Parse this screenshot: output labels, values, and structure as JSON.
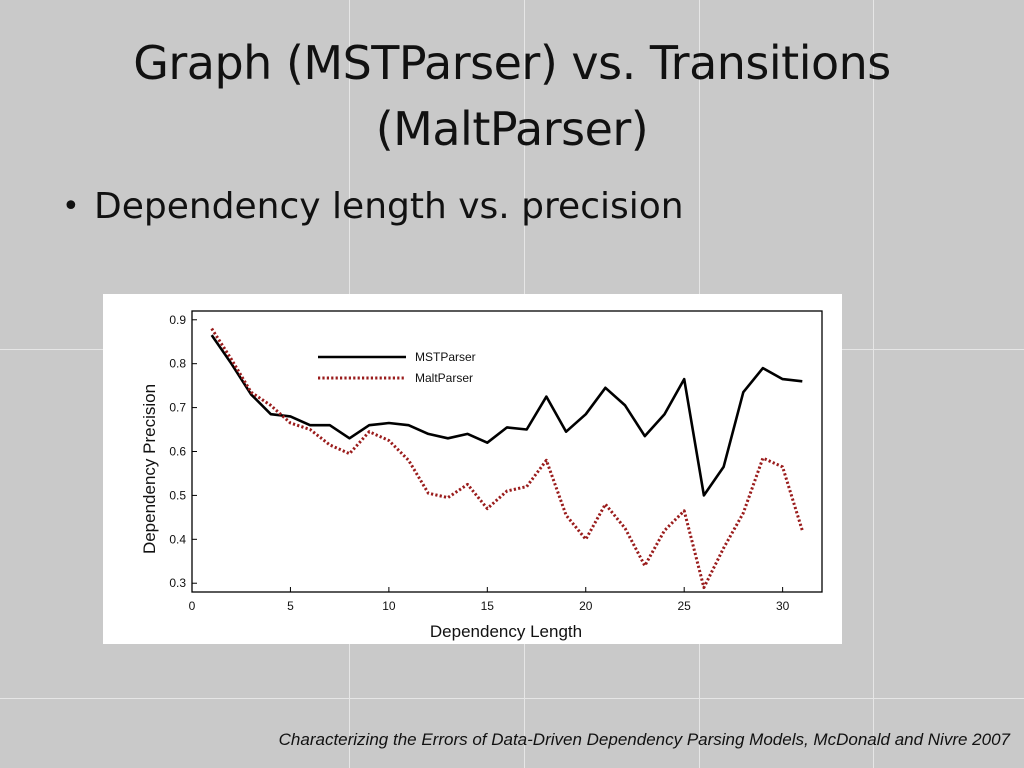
{
  "slide": {
    "title": "Graph (MSTParser) vs. Transitions (MaltParser)",
    "bullet": "Dependency length vs. precision",
    "citation": "Characterizing the Errors of Data-Driven Dependency Parsing Models, McDonald and Nivre 2007"
  },
  "chart_data": {
    "type": "line",
    "xlabel": "Dependency Length",
    "ylabel": "Dependency Precision",
    "xlim": [
      0,
      32
    ],
    "ylim": [
      0.28,
      0.92
    ],
    "xticks": [
      0,
      5,
      10,
      15,
      20,
      25,
      30
    ],
    "yticks": [
      0.3,
      0.4,
      0.5,
      0.6,
      0.7,
      0.8,
      0.9
    ],
    "grid": false,
    "legend_position": "top-center",
    "x": [
      1,
      2,
      3,
      4,
      5,
      6,
      7,
      8,
      9,
      10,
      11,
      12,
      13,
      14,
      15,
      16,
      17,
      18,
      19,
      20,
      21,
      22,
      23,
      24,
      25,
      26,
      27,
      28,
      29,
      30,
      31
    ],
    "series": [
      {
        "name": "MSTParser",
        "color": "#000000",
        "style": "solid",
        "values": [
          0.865,
          0.8,
          0.73,
          0.685,
          0.68,
          0.66,
          0.66,
          0.63,
          0.66,
          0.665,
          0.66,
          0.64,
          0.63,
          0.64,
          0.62,
          0.655,
          0.65,
          0.725,
          0.645,
          0.685,
          0.745,
          0.705,
          0.635,
          0.685,
          0.765,
          0.5,
          0.565,
          0.735,
          0.79,
          0.765,
          0.76
        ]
      },
      {
        "name": "MaltParser",
        "color": "#9a1c1c",
        "style": "dotted",
        "values": [
          0.88,
          0.81,
          0.735,
          0.705,
          0.665,
          0.65,
          0.615,
          0.595,
          0.645,
          0.625,
          0.58,
          0.505,
          0.495,
          0.525,
          0.47,
          0.51,
          0.52,
          0.58,
          0.455,
          0.4,
          0.48,
          0.425,
          0.34,
          0.42,
          0.465,
          0.29,
          0.38,
          0.46,
          0.585,
          0.565,
          0.42
        ]
      }
    ]
  }
}
